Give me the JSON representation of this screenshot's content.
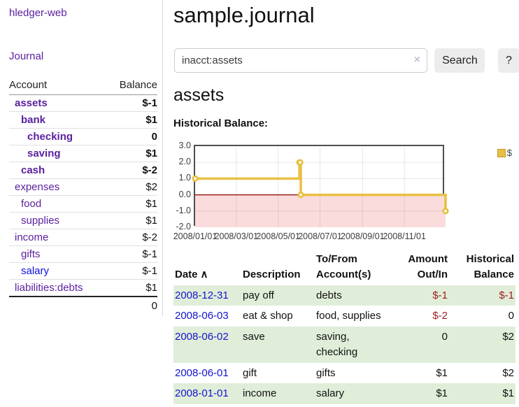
{
  "sidebar": {
    "brand": "hledger-web",
    "journal_link": "Journal",
    "accounts_header": {
      "account": "Account",
      "balance": "Balance"
    },
    "accounts": [
      {
        "name": "assets",
        "depth": 0,
        "bold": true,
        "balance": "$-1",
        "negative": "strong"
      },
      {
        "name": "bank",
        "depth": 1,
        "bold": true,
        "balance": "$1"
      },
      {
        "name": "checking",
        "depth": 2,
        "bold": true,
        "balance": "0"
      },
      {
        "name": "saving",
        "depth": 2,
        "bold": true,
        "balance": "$1"
      },
      {
        "name": "cash",
        "depth": 1,
        "bold": true,
        "balance": "$-2",
        "negative": "strong"
      },
      {
        "name": "expenses",
        "depth": 0,
        "bold": false,
        "balance": "$2"
      },
      {
        "name": "food",
        "depth": 1,
        "bold": false,
        "balance": "$1"
      },
      {
        "name": "supplies",
        "depth": 1,
        "bold": false,
        "balance": "$1"
      },
      {
        "name": "income",
        "depth": 0,
        "bold": false,
        "balance": "$-2",
        "negative": "soft"
      },
      {
        "name": "gifts",
        "depth": 1,
        "bold": false,
        "balance": "$-1",
        "negative": "soft"
      },
      {
        "name": "salary",
        "depth": 1,
        "bold": false,
        "balance": "$-1",
        "negative": "soft",
        "unvisited": true
      },
      {
        "name": "liabilities:debts",
        "depth": 0,
        "bold": false,
        "balance": "$1"
      }
    ],
    "total": "0"
  },
  "header": {
    "title": "sample.journal"
  },
  "search": {
    "value": "inacct:assets",
    "button_label": "Search",
    "help_label": "?"
  },
  "icons": {
    "clear": "×",
    "sort_ascending": "∧"
  },
  "account_page": {
    "title": "assets",
    "section_label": "Historical Balance:"
  },
  "chart_data": {
    "type": "line",
    "title": "Historical Balance:",
    "step": true,
    "xlim": [
      0,
      365
    ],
    "ylim": [
      -2,
      3
    ],
    "legend": {
      "position": "top-right",
      "entries": [
        "$"
      ]
    },
    "series": [
      {
        "name": "$",
        "color": "#e9c044",
        "points": [
          {
            "date": "2008-01-01",
            "day": 0,
            "value": 1
          },
          {
            "date": "2008-06-01",
            "day": 152,
            "value": 2
          },
          {
            "date": "2008-06-02",
            "day": 153,
            "value": 2
          },
          {
            "date": "2008-06-03",
            "day": 154,
            "value": 0
          },
          {
            "date": "2008-12-31",
            "day": 365,
            "value": -1
          }
        ]
      }
    ],
    "x_ticks": [
      {
        "pos": 0,
        "label": "2008/01/01"
      },
      {
        "pos": 60,
        "label": "2008/03/01"
      },
      {
        "pos": 121,
        "label": "2008/05/01"
      },
      {
        "pos": 182,
        "label": "2008/07/01"
      },
      {
        "pos": 244,
        "label": "2008/09/01"
      },
      {
        "pos": 305,
        "label": "2008/11/01"
      }
    ],
    "y_ticks": [
      {
        "value": 3,
        "label": "3.0"
      },
      {
        "value": 2,
        "label": "2.0"
      },
      {
        "value": 1,
        "label": "1.0"
      },
      {
        "value": 0,
        "label": "0.0"
      },
      {
        "value": -1,
        "label": "-1.0"
      },
      {
        "value": -2,
        "label": "-2.0"
      }
    ],
    "grid": true,
    "negative_region_color": "#fbdcdc",
    "zero_line_color": "#8b0000"
  },
  "register": {
    "columns": [
      {
        "label": "Date",
        "sorted": true
      },
      {
        "label": "Description"
      },
      {
        "label": "To/From Account(s)"
      },
      {
        "label": "Amount Out/In",
        "align": "right"
      },
      {
        "label": "Historical Balance",
        "align": "right"
      }
    ],
    "rows": [
      {
        "date": "2008-12-31",
        "description": "pay off",
        "accounts": "debts",
        "amount": "$-1",
        "amount_negative": true,
        "balance": "$-1",
        "balance_negative": true
      },
      {
        "date": "2008-06-03",
        "description": "eat & shop",
        "accounts": "food, supplies",
        "amount": "$-2",
        "amount_negative": true,
        "balance": "0",
        "balance_negative": false
      },
      {
        "date": "2008-06-02",
        "description": "save",
        "accounts": "saving, checking",
        "amount": "0",
        "amount_negative": false,
        "balance": "$2",
        "balance_negative": false
      },
      {
        "date": "2008-06-01",
        "description": "gift",
        "accounts": "gifts",
        "amount": "$1",
        "amount_negative": false,
        "balance": "$2",
        "balance_negative": false
      },
      {
        "date": "2008-01-01",
        "description": "income",
        "accounts": "salary",
        "amount": "$1",
        "amount_negative": false,
        "balance": "$1",
        "balance_negative": false
      }
    ]
  },
  "colors": {
    "link_visited": "#5a1f9e",
    "link_unvisited": "#0d0de0",
    "date_link": "#1414cc",
    "negative_strong": "#9d1c1c",
    "negative_soft": "#c47e7e",
    "series_gold": "#e9c044",
    "stripe_green": "#e0eed9"
  }
}
